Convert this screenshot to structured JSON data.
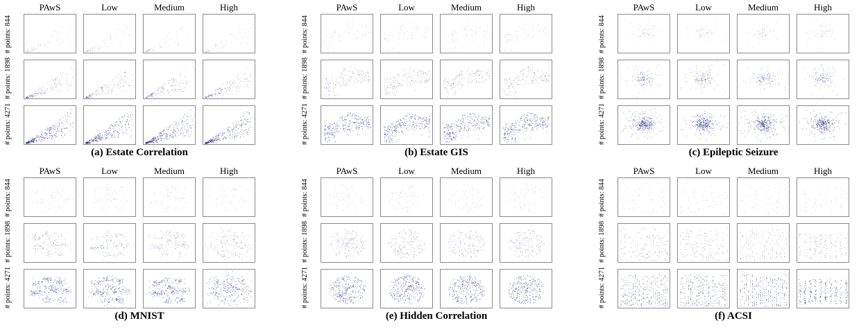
{
  "columns": [
    "PAwS",
    "Low",
    "Medium",
    "High"
  ],
  "rows": [
    "# points: 844",
    "# points: 1898",
    "# points: 4271"
  ],
  "chart_data": [
    {
      "type": "scatter",
      "caption": "(a) Estate Correlation",
      "pattern": "wedge",
      "points_per_row": [
        844,
        1898,
        4271
      ],
      "color": "#1a237e"
    },
    {
      "type": "scatter",
      "caption": "(b) Estate GIS",
      "pattern": "map",
      "points_per_row": [
        844,
        1898,
        4271
      ],
      "color": "#1a237e"
    },
    {
      "type": "scatter",
      "caption": "(c) Epileptic Seizure",
      "pattern": "cluster",
      "points_per_row": [
        844,
        1898,
        4271
      ],
      "color": "#1a237e"
    },
    {
      "type": "scatter",
      "caption": "(d) MNIST",
      "pattern": "mnist",
      "points_per_row": [
        844,
        1898,
        4271
      ],
      "color": "#1a237e"
    },
    {
      "type": "scatter",
      "caption": "(e) Hidden Correlation",
      "pattern": "ellipse",
      "points_per_row": [
        844,
        1898,
        4271
      ],
      "color": "#1a237e"
    },
    {
      "type": "scatter",
      "caption": "(f) ACSI",
      "pattern": "grid",
      "points_per_row": [
        844,
        1898,
        4271
      ],
      "color": "#1a237e"
    }
  ]
}
